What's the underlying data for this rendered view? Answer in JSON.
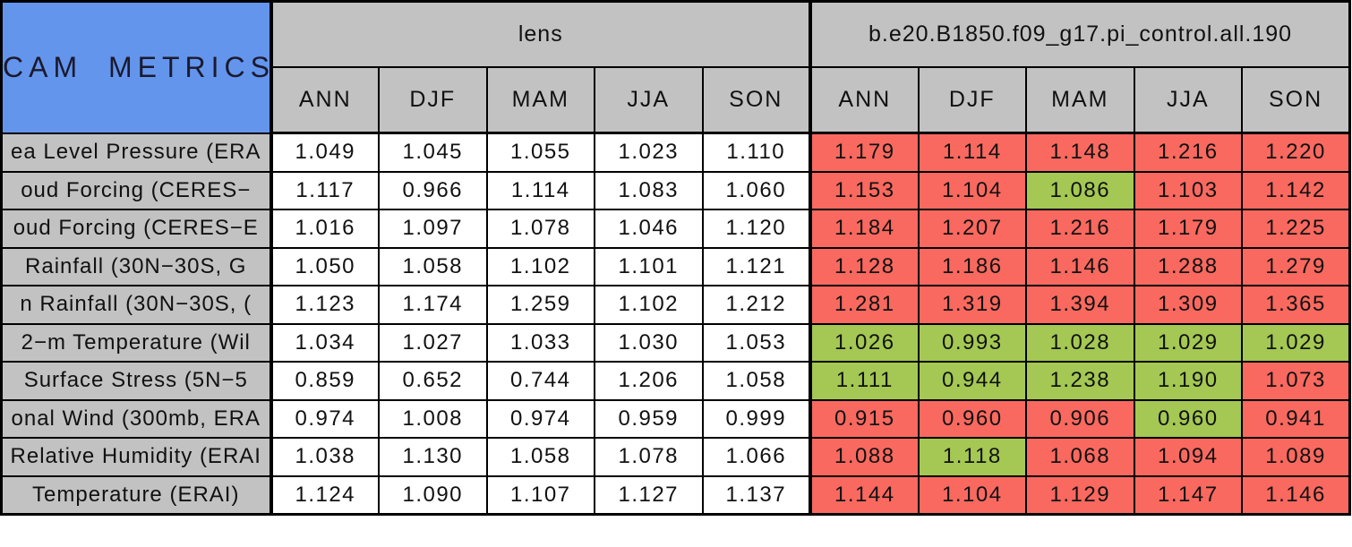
{
  "colors": {
    "header_blue": "#6495ec",
    "header_gray": "#c2c2c2",
    "cell_red": "#f9695f",
    "cell_green": "#a4c853",
    "border_black": "#000000"
  },
  "chart_data": {
    "type": "table",
    "title": "CAM METRICS",
    "column_groups": [
      "lens",
      "b.e20.B1850.f09_g17.pi_control.all.190"
    ],
    "columns": [
      "ANN",
      "DJF",
      "MAM",
      "JJA",
      "SON"
    ],
    "cell_color_legend": {
      "red": "#f9695f",
      "green": "#a4c853"
    },
    "rows": [
      {
        "label": "ea Level Pressure (ERA",
        "lens": [
          "1.049",
          "1.045",
          "1.055",
          "1.023",
          "1.110"
        ],
        "control": [
          "1.179",
          "1.114",
          "1.148",
          "1.216",
          "1.220"
        ],
        "control_status": [
          "red",
          "red",
          "red",
          "red",
          "red"
        ]
      },
      {
        "label": "oud Forcing (CERES−",
        "lens": [
          "1.117",
          "0.966",
          "1.114",
          "1.083",
          "1.060"
        ],
        "control": [
          "1.153",
          "1.104",
          "1.086",
          "1.103",
          "1.142"
        ],
        "control_status": [
          "red",
          "red",
          "green",
          "red",
          "red"
        ]
      },
      {
        "label": "oud Forcing (CERES−E",
        "lens": [
          "1.016",
          "1.097",
          "1.078",
          "1.046",
          "1.120"
        ],
        "control": [
          "1.184",
          "1.207",
          "1.216",
          "1.179",
          "1.225"
        ],
        "control_status": [
          "red",
          "red",
          "red",
          "red",
          "red"
        ]
      },
      {
        "label": "Rainfall (30N−30S, G",
        "lens": [
          "1.050",
          "1.058",
          "1.102",
          "1.101",
          "1.121"
        ],
        "control": [
          "1.128",
          "1.186",
          "1.146",
          "1.288",
          "1.279"
        ],
        "control_status": [
          "red",
          "red",
          "red",
          "red",
          "red"
        ]
      },
      {
        "label": "n Rainfall (30N−30S, (",
        "lens": [
          "1.123",
          "1.174",
          "1.259",
          "1.102",
          "1.212"
        ],
        "control": [
          "1.281",
          "1.319",
          "1.394",
          "1.309",
          "1.365"
        ],
        "control_status": [
          "red",
          "red",
          "red",
          "red",
          "red"
        ]
      },
      {
        "label": "2−m Temperature (Wil",
        "lens": [
          "1.034",
          "1.027",
          "1.033",
          "1.030",
          "1.053"
        ],
        "control": [
          "1.026",
          "0.993",
          "1.028",
          "1.029",
          "1.029"
        ],
        "control_status": [
          "green",
          "green",
          "green",
          "green",
          "green"
        ]
      },
      {
        "label": "Surface Stress (5N−5",
        "lens": [
          "0.859",
          "0.652",
          "0.744",
          "1.206",
          "1.058"
        ],
        "control": [
          "1.111",
          "0.944",
          "1.238",
          "1.190",
          "1.073"
        ],
        "control_status": [
          "green",
          "green",
          "green",
          "green",
          "red"
        ]
      },
      {
        "label": "onal Wind (300mb, ERA",
        "lens": [
          "0.974",
          "1.008",
          "0.974",
          "0.959",
          "0.999"
        ],
        "control": [
          "0.915",
          "0.960",
          "0.906",
          "0.960",
          "0.941"
        ],
        "control_status": [
          "red",
          "red",
          "red",
          "green",
          "red"
        ]
      },
      {
        "label": "Relative Humidity (ERAI",
        "lens": [
          "1.038",
          "1.130",
          "1.058",
          "1.078",
          "1.066"
        ],
        "control": [
          "1.088",
          "1.118",
          "1.068",
          "1.094",
          "1.089"
        ],
        "control_status": [
          "red",
          "green",
          "red",
          "red",
          "red"
        ]
      },
      {
        "label": "Temperature (ERAI)",
        "lens": [
          "1.124",
          "1.090",
          "1.107",
          "1.127",
          "1.137"
        ],
        "control": [
          "1.144",
          "1.104",
          "1.129",
          "1.147",
          "1.146"
        ],
        "control_status": [
          "red",
          "red",
          "red",
          "red",
          "red"
        ]
      }
    ]
  }
}
